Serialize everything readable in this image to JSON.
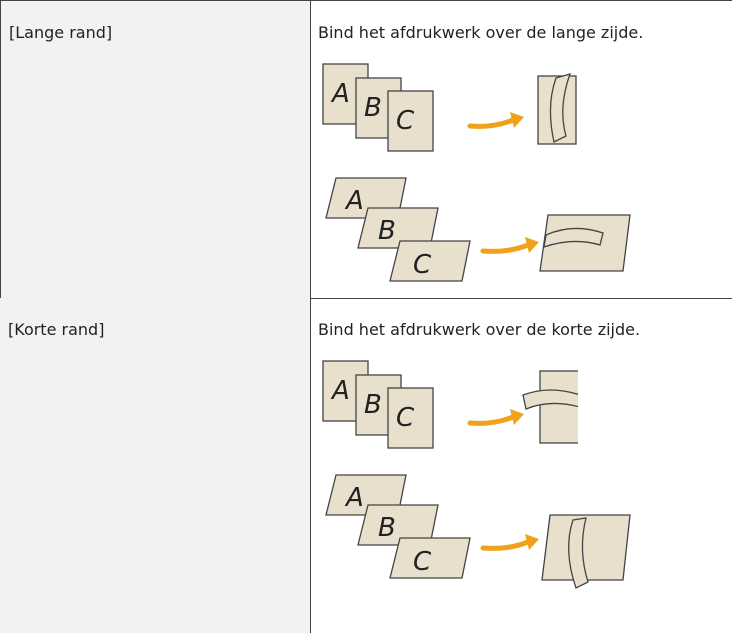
{
  "table": {
    "rows": [
      {
        "label": "[Lange rand]",
        "description": "Bind het afdrukwerk over de lange zijde.",
        "illustrations": [
          [
            "A",
            "B",
            "C"
          ],
          [
            "A",
            "B",
            "C"
          ]
        ]
      },
      {
        "label": "[Korte rand]",
        "description": "Bind het afdrukwerk over de korte zijde.",
        "illustrations": [
          [
            "A",
            "B",
            "C"
          ],
          [
            "A",
            "B",
            "C"
          ]
        ]
      }
    ]
  }
}
